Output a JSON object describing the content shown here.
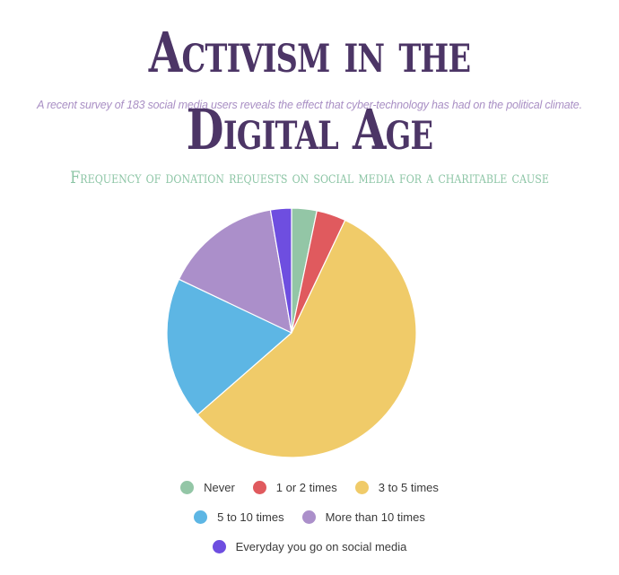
{
  "header": {
    "title": "Activism in the Digital Age",
    "subtitle": "A recent survey of 183 social media users reveals the effect that cyber-technology has had on the political climate."
  },
  "colors": {
    "title": "#4c3566",
    "subtitle": "#a98fc4",
    "chart_title": "#8cc5a5",
    "slice_border": "#ffffff"
  },
  "chart_data": {
    "type": "pie",
    "title": "Frequency of donation requests on social media for a charitable cause",
    "categories": [
      "Never",
      "1 or 2 times",
      "3 to 5 times",
      "5 to 10 times",
      "More than 10 times",
      "Everyday you go on social media"
    ],
    "values": [
      6,
      7,
      104,
      34,
      28,
      5
    ],
    "unit": "respondents",
    "colors": [
      "#93c6a6",
      "#e05a5e",
      "#f0cb69",
      "#5db6e4",
      "#ab8fca",
      "#6e4ee0"
    ],
    "start_angle_deg": 0,
    "direction": "clockwise",
    "legend": {
      "position": "bottom",
      "rows": [
        [
          "Never",
          "1 or 2 times",
          "3 to 5 times"
        ],
        [
          "5 to 10 times",
          "More than 10 times"
        ],
        [
          "Everyday you go on social media"
        ]
      ]
    }
  }
}
